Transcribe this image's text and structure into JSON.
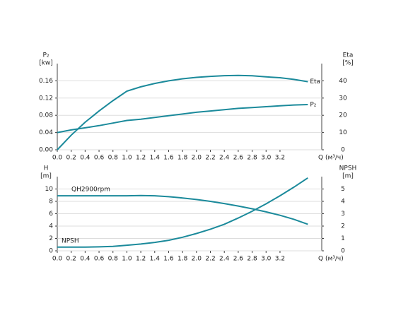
{
  "chart_data": [
    {
      "type": "line",
      "y_label": [
        "P₂",
        "[kw]"
      ],
      "y2_label": [
        "Eta",
        "[%]"
      ],
      "x_label": "Q (м³/ч)",
      "x": [
        0,
        0.2,
        0.4,
        0.6,
        0.8,
        1.0,
        1.2,
        1.4,
        1.6,
        1.8,
        2.0,
        2.2,
        2.4,
        2.6,
        2.8,
        3.0,
        3.2,
        3.4,
        3.6
      ],
      "xlim": [
        0,
        3.8
      ],
      "xticks": [
        {
          "value": 0,
          "label": "0.0"
        },
        0.2,
        0.4,
        0.6,
        0.8,
        {
          "value": 1,
          "label": "1.0"
        },
        1.2,
        1.4,
        1.6,
        1.8,
        {
          "value": 2,
          "label": "2.0"
        },
        2.2,
        2.4,
        2.6,
        2.8,
        {
          "value": 3,
          "label": "3.0"
        },
        3.2
      ],
      "ylim": [
        0,
        0.2
      ],
      "yticks": [
        {
          "value": 0,
          "label": "0.00"
        },
        0.04,
        0.08,
        0.12,
        0.16
      ],
      "y2lim": [
        0,
        50
      ],
      "y2ticks": [
        0,
        10,
        20,
        30,
        40
      ],
      "grid": true,
      "series": [
        {
          "name": "Eta",
          "color": "#1b8a9b",
          "axis": "y2",
          "values": [
            0,
            8.5,
            16,
            22.5,
            28.5,
            34,
            36.5,
            38.5,
            40,
            41.2,
            42,
            42.6,
            43,
            43.1,
            42.9,
            42.3,
            41.8,
            40.8,
            39.5
          ]
        },
        {
          "name": "P₂",
          "color": "#1b8a9b",
          "axis": "y",
          "values": [
            0.04,
            0.046,
            0.051,
            0.056,
            0.062,
            0.068,
            0.071,
            0.075,
            0.079,
            0.083,
            0.087,
            0.09,
            0.093,
            0.096,
            0.098,
            0.1,
            0.102,
            0.104,
            0.105
          ]
        }
      ]
    },
    {
      "type": "line",
      "y_label": [
        "H",
        "[m]"
      ],
      "y2_label": [
        "NPSH",
        "[m]"
      ],
      "x_label": "Q (м³/ч)",
      "x": [
        0,
        0.2,
        0.4,
        0.6,
        0.8,
        1.0,
        1.2,
        1.4,
        1.6,
        1.8,
        2.0,
        2.2,
        2.4,
        2.6,
        2.8,
        3.0,
        3.2,
        3.4,
        3.6
      ],
      "xlim": [
        0,
        3.8
      ],
      "xticks": [
        {
          "value": 0,
          "label": "0.0"
        },
        0.2,
        0.4,
        0.6,
        0.8,
        {
          "value": 1,
          "label": "1.0"
        },
        1.2,
        1.4,
        1.6,
        1.8,
        {
          "value": 2,
          "label": "2.0"
        },
        2.2,
        2.4,
        2.6,
        2.8,
        {
          "value": 3,
          "label": "3.0"
        },
        3.2
      ],
      "ylim": [
        0,
        12
      ],
      "yticks": [
        0,
        2,
        4,
        6,
        8,
        10
      ],
      "y2lim": [
        0,
        6
      ],
      "y2ticks": [
        0,
        1,
        2,
        3,
        4,
        5
      ],
      "grid": true,
      "series": [
        {
          "name": "QH2900rpm",
          "color": "#1b8a9b",
          "axis": "y",
          "values": [
            8.9,
            8.9,
            8.9,
            8.9,
            8.9,
            8.9,
            8.95,
            8.9,
            8.75,
            8.55,
            8.3,
            8.0,
            7.65,
            7.25,
            6.8,
            6.3,
            5.75,
            5.1,
            4.3
          ]
        },
        {
          "name": "NPSH",
          "color": "#1b8a9b",
          "axis": "y2",
          "values": [
            0.3,
            0.3,
            0.3,
            0.32,
            0.36,
            0.45,
            0.55,
            0.68,
            0.85,
            1.1,
            1.4,
            1.75,
            2.15,
            2.65,
            3.2,
            3.8,
            4.45,
            5.15,
            5.9
          ]
        }
      ]
    }
  ]
}
